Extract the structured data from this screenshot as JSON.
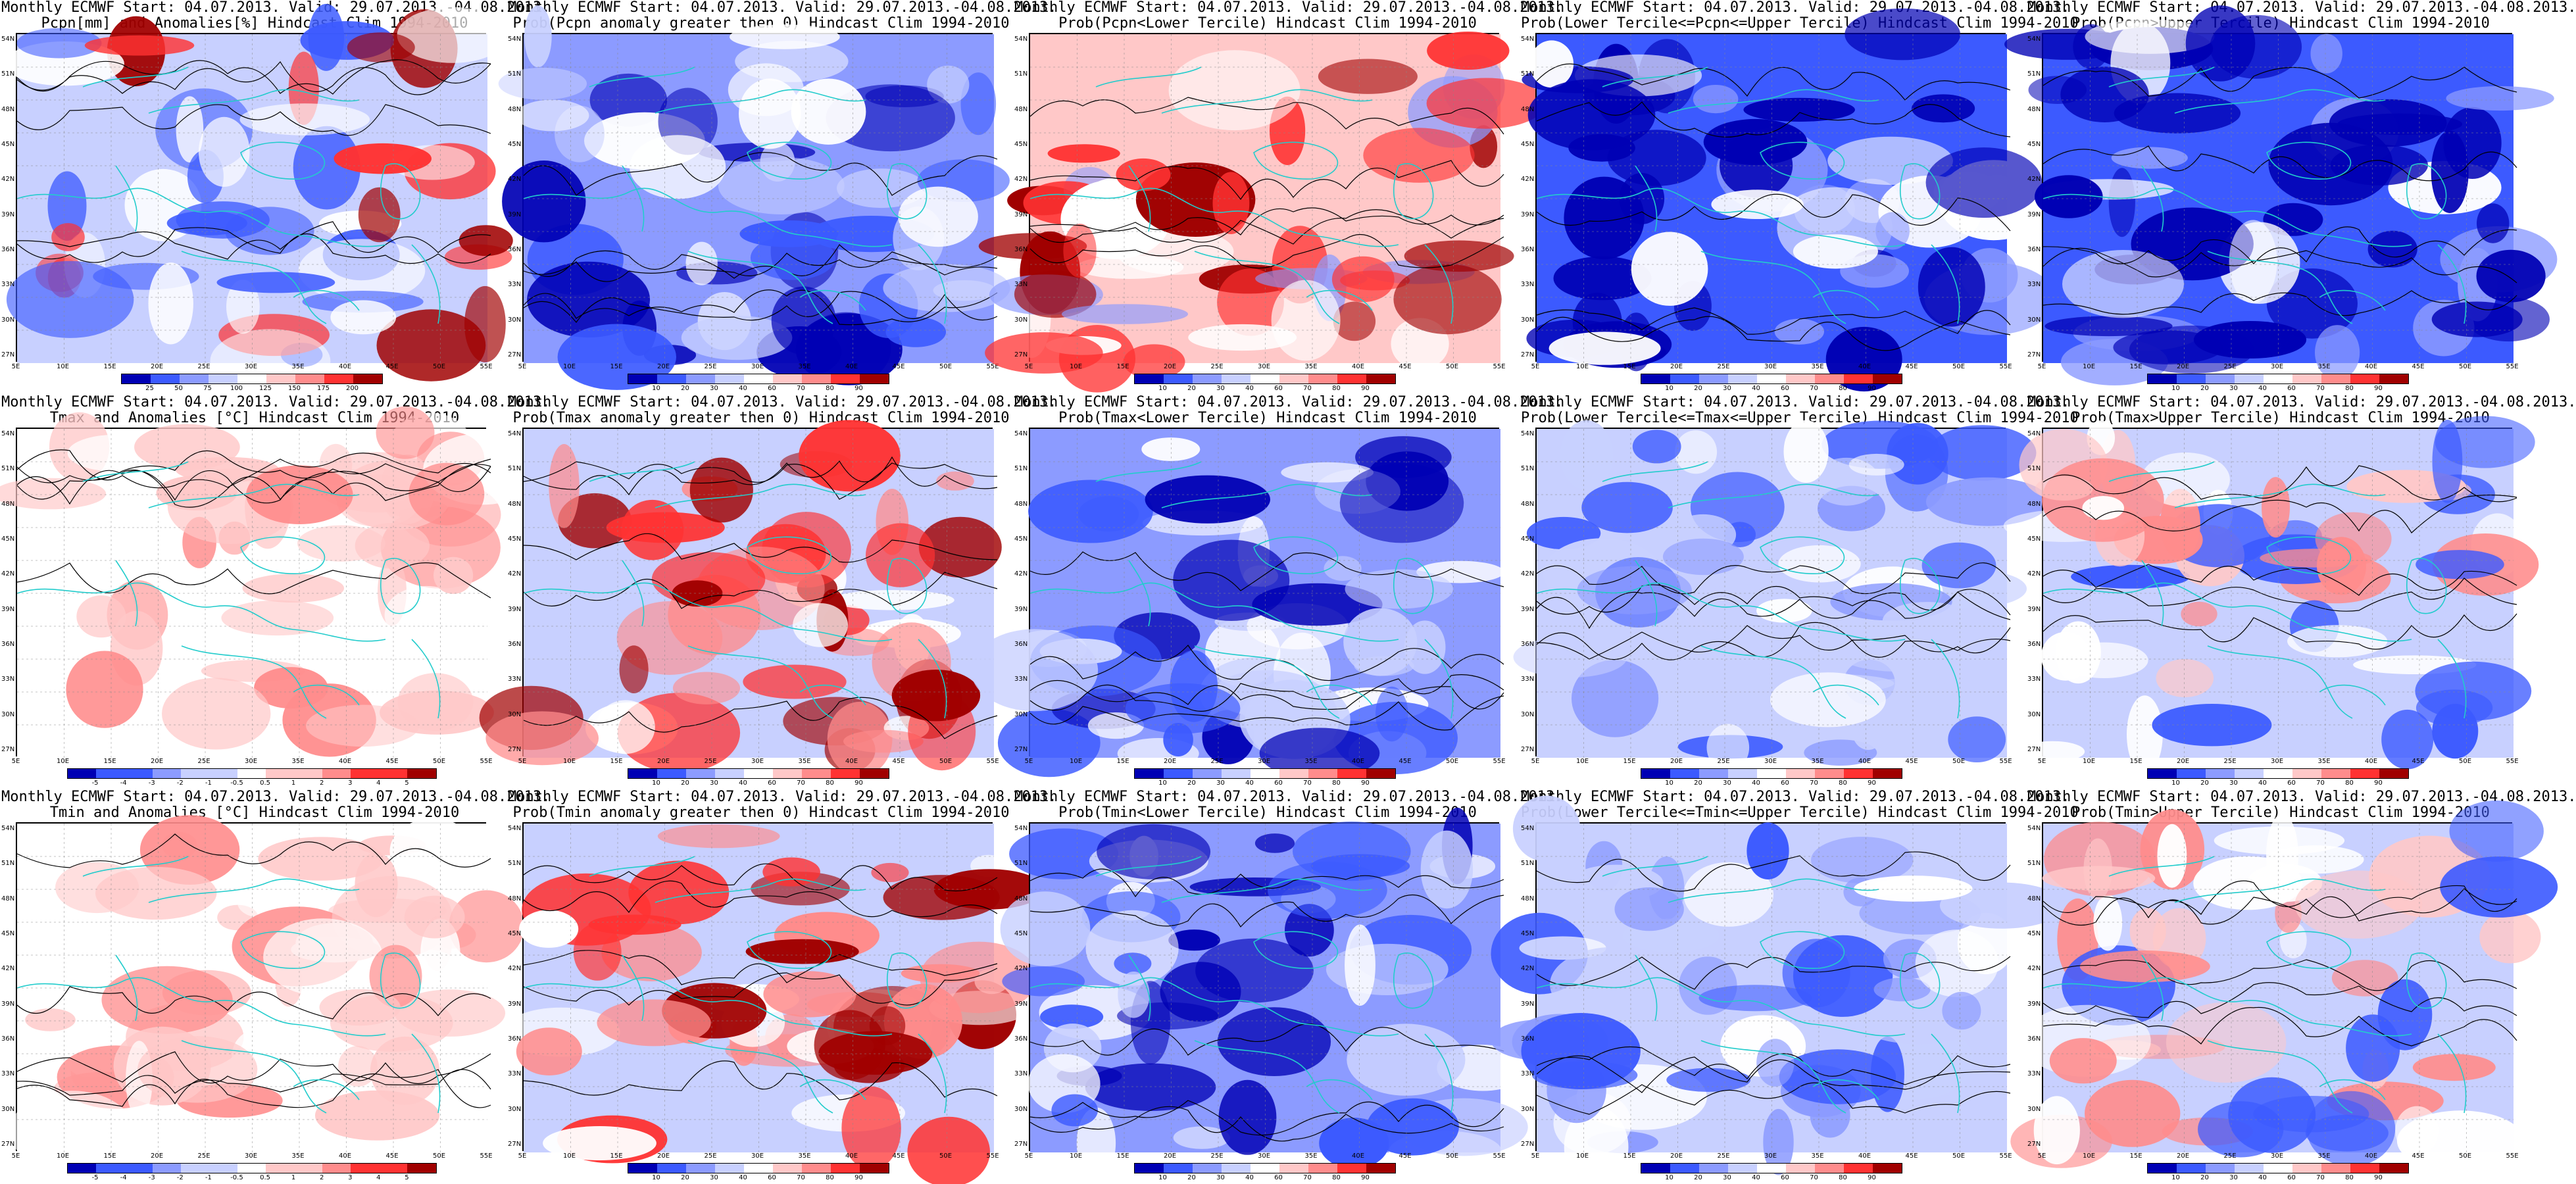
{
  "latitudes": [
    "54N",
    "51N",
    "48N",
    "45N",
    "42N",
    "39N",
    "36N",
    "33N",
    "30N",
    "27N"
  ],
  "longitudes": [
    "5E",
    "10E",
    "15E",
    "20E",
    "25E",
    "30E",
    "35E",
    "40E",
    "45E",
    "50E",
    "55E"
  ],
  "colors": {
    "deep_blue": "#0000b4",
    "mid_blue": "#3c5aff",
    "light_blue": "#8c9bff",
    "pale_blue": "#c8d0ff",
    "white": "#ffffff",
    "pale_red": "#ffc8c8",
    "light_red": "#ff8c8c",
    "mid_red": "#ff3232",
    "deep_red": "#a00000",
    "coast": "#22cccc",
    "contour": "#000000"
  },
  "panels": [
    {
      "row": 0,
      "col": 0,
      "line1": "Monthly ECMWF Start: 04.07.2013. Valid: 29.07.2013.-04.08.2013.",
      "line2": "Pcpn[mm] and Anomalies[%] Hindcast Clim 1994-2010",
      "scale": [
        "25",
        "50",
        "75",
        "100",
        "125",
        "150",
        "175",
        "200"
      ],
      "pattern": "mixed_blue"
    },
    {
      "row": 0,
      "col": 1,
      "line1": "Monthly ECMWF Start: 04.07.2013. Valid: 29.07.2013.-04.08.2013.",
      "line2": "Prob(Pcpn anomaly greater then 0) Hindcast Clim 1994-2010",
      "scale": [
        "10",
        "20",
        "30",
        "40",
        "60",
        "70",
        "80",
        "90"
      ],
      "pattern": "blue"
    },
    {
      "row": 0,
      "col": 2,
      "line1": "Monthly ECMWF Start: 04.07.2013. Valid: 29.07.2013.-04.08.2013.",
      "line2": "Prob(Pcpn<Lower Tercile) Hindcast Clim 1994-2010",
      "scale": [
        "10",
        "20",
        "30",
        "40",
        "60",
        "70",
        "80",
        "90"
      ],
      "pattern": "red_south"
    },
    {
      "row": 0,
      "col": 3,
      "line1": "Monthly ECMWF Start: 04.07.2013. Valid: 29.07.2013.-04.08.2013.",
      "line2": "Prob(Lower Tercile<=Pcpn<=Upper Tercile) Hindcast Clim 1994-2010",
      "scale": [
        "10",
        "20",
        "30",
        "40",
        "60",
        "70",
        "80",
        "90"
      ],
      "pattern": "deep_blue"
    },
    {
      "row": 0,
      "col": 4,
      "line1": "Monthly ECMWF Start: 04.07.2013. Valid: 29.07.2013.-04.08.2013.",
      "line2": "Prob(Pcpn>Upper Tercile) Hindcast Clim 1994-2010",
      "scale": [
        "10",
        "20",
        "30",
        "40",
        "60",
        "70",
        "80",
        "90"
      ],
      "pattern": "deep_blue"
    },
    {
      "row": 1,
      "col": 0,
      "line1": "Monthly ECMWF Start: 04.07.2013. Valid: 29.07.2013.-04.08.2013.",
      "line2": "Tmax and Anomalies [°C] Hindcast Clim 1994-2010",
      "scale": [
        "-5",
        "-4",
        "-3",
        "-2",
        "-1",
        "-0.5",
        "0.5",
        "1",
        "2",
        "3",
        "4",
        "5"
      ],
      "pattern": "pale_red"
    },
    {
      "row": 1,
      "col": 1,
      "line1": "Monthly ECMWF Start: 04.07.2013. Valid: 29.07.2013.-04.08.2013.",
      "line2": "Prob(Tmax anomaly greater then 0) Hindcast Clim 1994-2010",
      "scale": [
        "10",
        "20",
        "30",
        "40",
        "60",
        "70",
        "80",
        "90"
      ],
      "pattern": "red_east"
    },
    {
      "row": 1,
      "col": 2,
      "line1": "Monthly ECMWF Start: 04.07.2013. Valid: 29.07.2013.-04.08.2013.",
      "line2": "Prob(Tmax<Lower Tercile) Hindcast Clim 1994-2010",
      "scale": [
        "10",
        "20",
        "30",
        "40",
        "60",
        "70",
        "80",
        "90"
      ],
      "pattern": "blue"
    },
    {
      "row": 1,
      "col": 3,
      "line1": "Monthly ECMWF Start: 04.07.2013. Valid: 29.07.2013.-04.08.2013.",
      "line2": "Prob(Lower Tercile<=Tmax<=Upper Tercile) Hindcast Clim 1994-2010",
      "scale": [
        "10",
        "20",
        "30",
        "40",
        "60",
        "70",
        "80",
        "90"
      ],
      "pattern": "light_blue"
    },
    {
      "row": 1,
      "col": 4,
      "line1": "Monthly ECMWF Start: 04.07.2013. Valid: 29.07.2013.-04.08.2013.",
      "line2": "Prob(Tmax>Upper Tercile) Hindcast Clim 1994-2010",
      "scale": [
        "10",
        "20",
        "30",
        "40",
        "60",
        "70",
        "80",
        "90"
      ],
      "pattern": "mixed_red"
    },
    {
      "row": 2,
      "col": 0,
      "line1": "Monthly ECMWF Start: 04.07.2013. Valid: 29.07.2013.-04.08.2013.",
      "line2": "Tmin and Anomalies [°C] Hindcast Clim 1994-2010",
      "scale": [
        "-5",
        "-4",
        "-3",
        "-2",
        "-1",
        "-0.5",
        "0.5",
        "1",
        "2",
        "3",
        "4",
        "5"
      ],
      "pattern": "pale_red"
    },
    {
      "row": 2,
      "col": 1,
      "line1": "Monthly ECMWF Start: 04.07.2013. Valid: 29.07.2013.-04.08.2013.",
      "line2": "Prob(Tmin anomaly greater then 0) Hindcast Clim 1994-2010",
      "scale": [
        "10",
        "20",
        "30",
        "40",
        "60",
        "70",
        "80",
        "90"
      ],
      "pattern": "red_east"
    },
    {
      "row": 2,
      "col": 2,
      "line1": "Monthly ECMWF Start: 04.07.2013. Valid: 29.07.2013.-04.08.2013.",
      "line2": "Prob(Tmin<Lower Tercile) Hindcast Clim 1994-2010",
      "scale": [
        "10",
        "20",
        "30",
        "40",
        "60",
        "70",
        "80",
        "90"
      ],
      "pattern": "blue"
    },
    {
      "row": 2,
      "col": 3,
      "line1": "Monthly ECMWF Start: 04.07.2013. Valid: 29.07.2013.-04.08.2013.",
      "line2": "Prob(Lower Tercile<=Tmin<=Upper Tercile) Hindcast Clim 1994-2010",
      "scale": [
        "10",
        "20",
        "30",
        "40",
        "60",
        "70",
        "80",
        "90"
      ],
      "pattern": "light_blue"
    },
    {
      "row": 2,
      "col": 4,
      "line1": "Monthly ECMWF Start: 04.07.2013. Valid: 29.07.2013.-04.08.2013.",
      "line2": "Prob(Tmin>Upper Tercile) Hindcast Clim 1994-2010",
      "scale": [
        "10",
        "20",
        "30",
        "40",
        "60",
        "70",
        "80",
        "90"
      ],
      "pattern": "mixed_red"
    }
  ]
}
